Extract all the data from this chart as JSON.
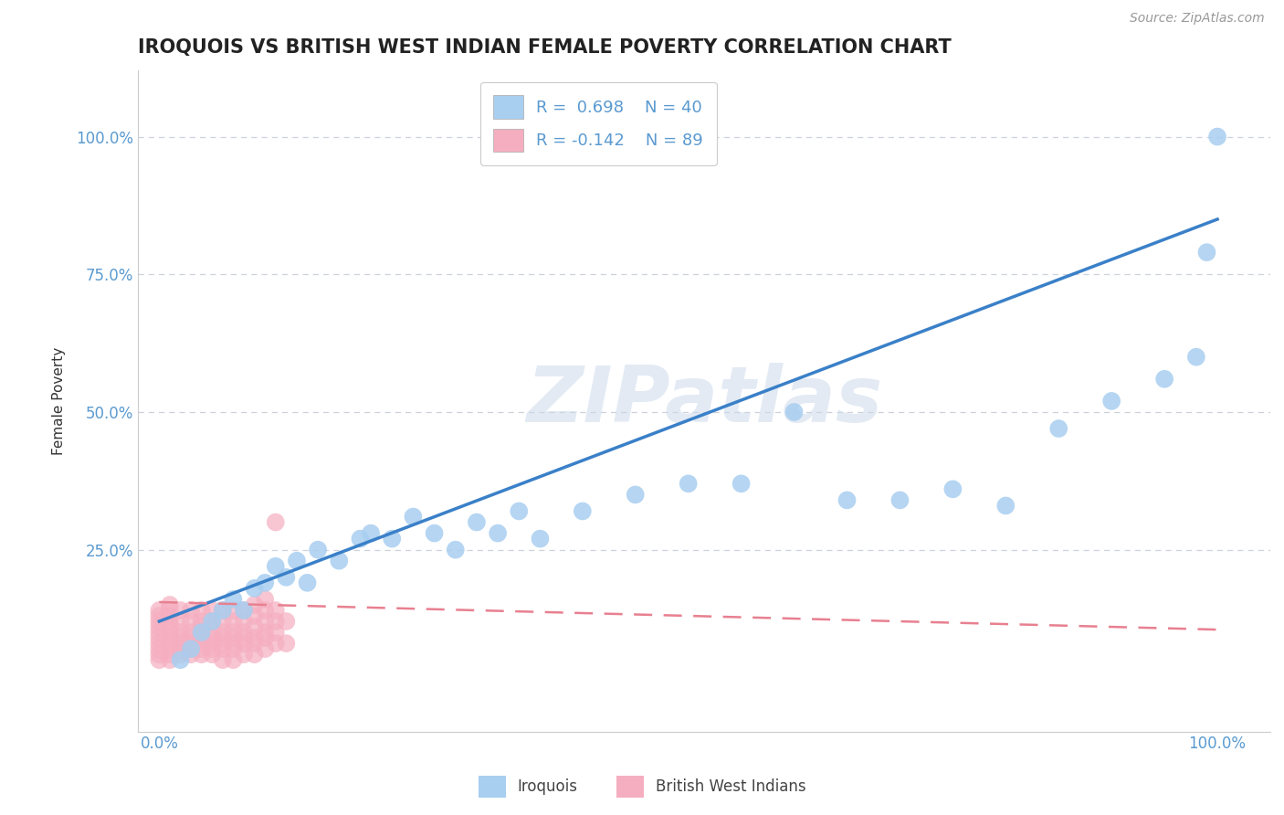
{
  "title": "IROQUOIS VS BRITISH WEST INDIAN FEMALE POVERTY CORRELATION CHART",
  "source": "Source: ZipAtlas.com",
  "ylabel": "Female Poverty",
  "xlim": [
    -0.02,
    1.05
  ],
  "ylim": [
    -0.08,
    1.12
  ],
  "xtick_labels": [
    "0.0%",
    "100.0%"
  ],
  "xtick_positions": [
    0.0,
    1.0
  ],
  "ytick_labels": [
    "25.0%",
    "50.0%",
    "75.0%",
    "100.0%"
  ],
  "ytick_positions": [
    0.25,
    0.5,
    0.75,
    1.0
  ],
  "watermark": "ZIPatlas",
  "iroquois_color": "#a8cef0",
  "bwi_color": "#f5aec0",
  "iroquois_line_color": "#3a80c8",
  "bwi_line_color": "#e88090",
  "background_color": "#ffffff",
  "grid_color": "#c8ccd8",
  "title_fontsize": 15,
  "legend_fontsize": 13,
  "axis_label_fontsize": 11,
  "tick_fontsize": 12,
  "tick_color": "#5a9ad0",
  "iroquois_line_intercept": 0.12,
  "iroquois_line_slope": 0.73,
  "bwi_line_intercept": 0.155,
  "bwi_line_slope": -0.05,
  "iroquois_x": [
    0.02,
    0.03,
    0.04,
    0.05,
    0.06,
    0.07,
    0.08,
    0.09,
    0.1,
    0.11,
    0.12,
    0.13,
    0.14,
    0.15,
    0.17,
    0.19,
    0.2,
    0.22,
    0.24,
    0.26,
    0.28,
    0.3,
    0.32,
    0.34,
    0.36,
    0.4,
    0.45,
    0.5,
    0.55,
    0.6,
    0.65,
    0.7,
    0.75,
    0.8,
    0.85,
    0.9,
    0.95,
    0.98,
    0.99,
    1.0
  ],
  "iroquois_y": [
    0.05,
    0.07,
    0.1,
    0.12,
    0.14,
    0.16,
    0.14,
    0.18,
    0.19,
    0.22,
    0.2,
    0.23,
    0.19,
    0.25,
    0.23,
    0.27,
    0.28,
    0.27,
    0.31,
    0.28,
    0.25,
    0.3,
    0.28,
    0.32,
    0.27,
    0.32,
    0.35,
    0.37,
    0.37,
    0.5,
    0.34,
    0.34,
    0.36,
    0.33,
    0.47,
    0.52,
    0.56,
    0.6,
    0.79,
    1.0
  ],
  "bwi_x": [
    0.0,
    0.0,
    0.0,
    0.0,
    0.0,
    0.0,
    0.0,
    0.0,
    0.0,
    0.0,
    0.01,
    0.01,
    0.01,
    0.01,
    0.01,
    0.01,
    0.01,
    0.01,
    0.01,
    0.01,
    0.01,
    0.02,
    0.02,
    0.02,
    0.02,
    0.02,
    0.02,
    0.02,
    0.03,
    0.03,
    0.03,
    0.03,
    0.03,
    0.03,
    0.03,
    0.04,
    0.04,
    0.04,
    0.04,
    0.04,
    0.04,
    0.04,
    0.04,
    0.05,
    0.05,
    0.05,
    0.05,
    0.05,
    0.05,
    0.05,
    0.06,
    0.06,
    0.06,
    0.06,
    0.06,
    0.06,
    0.06,
    0.07,
    0.07,
    0.07,
    0.07,
    0.07,
    0.07,
    0.07,
    0.08,
    0.08,
    0.08,
    0.08,
    0.08,
    0.08,
    0.09,
    0.09,
    0.09,
    0.09,
    0.09,
    0.09,
    0.1,
    0.1,
    0.1,
    0.1,
    0.1,
    0.1,
    0.11,
    0.11,
    0.11,
    0.11,
    0.11,
    0.12,
    0.12
  ],
  "bwi_y": [
    0.05,
    0.06,
    0.07,
    0.08,
    0.09,
    0.1,
    0.11,
    0.12,
    0.13,
    0.14,
    0.05,
    0.06,
    0.07,
    0.08,
    0.09,
    0.1,
    0.11,
    0.12,
    0.13,
    0.14,
    0.15,
    0.06,
    0.07,
    0.08,
    0.09,
    0.1,
    0.12,
    0.14,
    0.06,
    0.07,
    0.08,
    0.09,
    0.1,
    0.12,
    0.14,
    0.06,
    0.07,
    0.08,
    0.09,
    0.1,
    0.11,
    0.12,
    0.14,
    0.06,
    0.07,
    0.08,
    0.09,
    0.1,
    0.12,
    0.14,
    0.05,
    0.07,
    0.08,
    0.09,
    0.1,
    0.12,
    0.14,
    0.05,
    0.07,
    0.08,
    0.09,
    0.1,
    0.12,
    0.14,
    0.06,
    0.08,
    0.09,
    0.1,
    0.12,
    0.14,
    0.06,
    0.08,
    0.09,
    0.11,
    0.13,
    0.15,
    0.07,
    0.09,
    0.1,
    0.12,
    0.14,
    0.16,
    0.08,
    0.1,
    0.12,
    0.14,
    0.3,
    0.08,
    0.12
  ]
}
